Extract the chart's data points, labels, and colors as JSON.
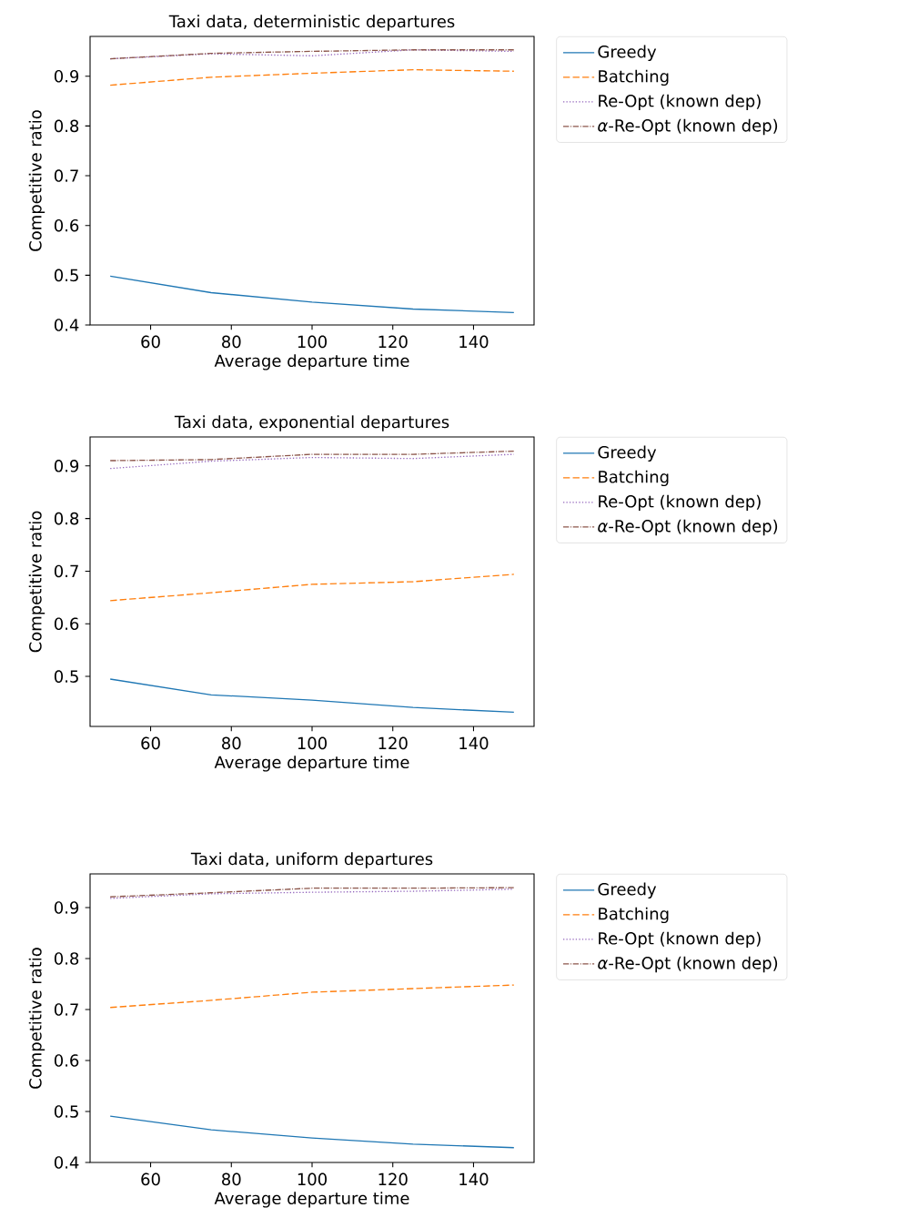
{
  "chart_data": [
    {
      "type": "line",
      "title": "Taxi data, deterministic departures",
      "xlabel": "Average departure time",
      "ylabel": "Competitive ratio",
      "x": [
        50,
        75,
        100,
        125,
        150
      ],
      "xlim": [
        45,
        155
      ],
      "ylim": [
        0.4,
        0.98
      ],
      "xticks": [
        60,
        80,
        100,
        120,
        140
      ],
      "yticks": [
        0.4,
        0.5,
        0.6,
        0.7,
        0.8,
        0.9
      ],
      "legend": "right",
      "grid": false,
      "series": [
        {
          "name": "Greedy",
          "color": "#1f77b4",
          "line_style": "solid",
          "values": [
            0.498,
            0.465,
            0.446,
            0.432,
            0.425
          ]
        },
        {
          "name": "Batching",
          "color": "#ff7f0e",
          "line_style": "dashed",
          "values": [
            0.882,
            0.898,
            0.906,
            0.913,
            0.91
          ]
        },
        {
          "name": "Re-Opt (known dep)",
          "color": "#9467bd",
          "line_style": "dotted",
          "values": [
            0.935,
            0.945,
            0.941,
            0.953,
            0.95
          ]
        },
        {
          "name": "*α*-Re-Opt (known dep)",
          "color": "#8c564b",
          "line_style": "dashdot",
          "values": [
            0.935,
            0.946,
            0.95,
            0.953,
            0.953
          ]
        }
      ]
    },
    {
      "type": "line",
      "title": "Taxi data, exponential departures",
      "xlabel": "Average departure time",
      "ylabel": "Competitive ratio",
      "x": [
        50,
        75,
        100,
        125,
        150
      ],
      "xlim": [
        45,
        155
      ],
      "ylim": [
        0.405,
        0.955
      ],
      "xticks": [
        60,
        80,
        100,
        120,
        140
      ],
      "yticks": [
        0.5,
        0.6,
        0.7,
        0.8,
        0.9
      ],
      "legend": "right",
      "grid": false,
      "series": [
        {
          "name": "Greedy",
          "color": "#1f77b4",
          "line_style": "solid",
          "values": [
            0.495,
            0.465,
            0.455,
            0.441,
            0.432
          ]
        },
        {
          "name": "Batching",
          "color": "#ff7f0e",
          "line_style": "dashed",
          "values": [
            0.644,
            0.659,
            0.675,
            0.68,
            0.694
          ]
        },
        {
          "name": "Re-Opt (known dep)",
          "color": "#9467bd",
          "line_style": "dotted",
          "values": [
            0.895,
            0.909,
            0.916,
            0.914,
            0.922
          ]
        },
        {
          "name": "*α*-Re-Opt (known dep)",
          "color": "#8c564b",
          "line_style": "dashdot",
          "values": [
            0.91,
            0.912,
            0.922,
            0.922,
            0.928
          ]
        }
      ]
    },
    {
      "type": "line",
      "title": "Taxi data, uniform departures",
      "xlabel": "Average departure time",
      "ylabel": "Competitive ratio",
      "x": [
        50,
        75,
        100,
        125,
        150
      ],
      "xlim": [
        45,
        155
      ],
      "ylim": [
        0.4,
        0.966
      ],
      "xticks": [
        60,
        80,
        100,
        120,
        140
      ],
      "yticks": [
        0.4,
        0.5,
        0.6,
        0.7,
        0.8,
        0.9
      ],
      "legend": "right",
      "grid": false,
      "series": [
        {
          "name": "Greedy",
          "color": "#1f77b4",
          "line_style": "solid",
          "values": [
            0.491,
            0.464,
            0.448,
            0.436,
            0.429
          ]
        },
        {
          "name": "Batching",
          "color": "#ff7f0e",
          "line_style": "dashed",
          "values": [
            0.704,
            0.718,
            0.734,
            0.741,
            0.748
          ]
        },
        {
          "name": "Re-Opt (known dep)",
          "color": "#9467bd",
          "line_style": "dotted",
          "values": [
            0.918,
            0.927,
            0.93,
            0.932,
            0.936
          ]
        },
        {
          "name": "*α*-Re-Opt (known dep)",
          "color": "#8c564b",
          "line_style": "dashdot",
          "values": [
            0.921,
            0.929,
            0.938,
            0.938,
            0.939
          ]
        }
      ]
    }
  ]
}
